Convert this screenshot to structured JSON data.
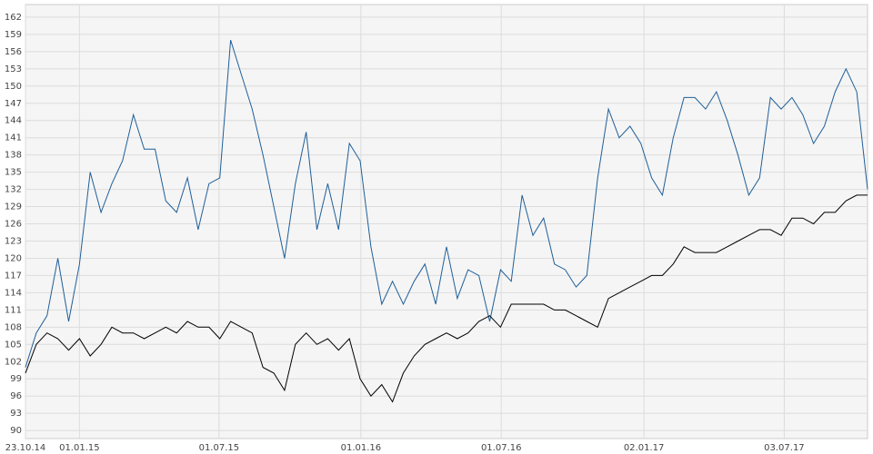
{
  "chart_data": {
    "type": "line",
    "x": [
      "23.10.14",
      "06.11.14",
      "20.11.14",
      "04.12.14",
      "18.12.14",
      "01.01.15",
      "15.01.15",
      "29.01.15",
      "12.02.15",
      "26.02.15",
      "12.03.15",
      "26.03.15",
      "09.04.15",
      "23.04.15",
      "07.05.15",
      "21.05.15",
      "04.06.15",
      "18.06.15",
      "02.07.15",
      "16.07.15",
      "30.07.15",
      "13.08.15",
      "27.08.15",
      "10.09.15",
      "24.09.15",
      "08.10.15",
      "22.10.15",
      "05.11.15",
      "19.11.15",
      "03.12.15",
      "17.12.15",
      "31.12.15",
      "14.01.16",
      "28.01.16",
      "11.02.16",
      "25.02.16",
      "10.03.16",
      "24.03.16",
      "07.04.16",
      "21.04.16",
      "05.05.16",
      "19.05.16",
      "02.06.16",
      "16.06.16",
      "30.06.16",
      "14.07.16",
      "28.07.16",
      "11.08.16",
      "25.08.16",
      "08.09.16",
      "22.09.16",
      "06.10.16",
      "20.10.16",
      "03.11.16",
      "17.11.16",
      "01.12.16",
      "15.12.16",
      "29.12.16",
      "12.01.17",
      "26.01.17",
      "09.02.17",
      "23.02.17",
      "09.03.17",
      "23.03.17",
      "06.04.17",
      "20.04.17",
      "04.05.17",
      "18.05.17",
      "01.06.17",
      "15.06.17",
      "29.06.17",
      "13.07.17",
      "27.07.17",
      "10.08.17",
      "24.08.17",
      "07.09.17",
      "21.09.17",
      "05.10.17",
      "19.10.17"
    ],
    "series": [
      {
        "color": "#1f5f99",
        "values": [
          101,
          107,
          110,
          120,
          109,
          119,
          135,
          128,
          133,
          137,
          145,
          139,
          139,
          130,
          128,
          134,
          125,
          133,
          134,
          158,
          152,
          146,
          138,
          129,
          120,
          133,
          142,
          125,
          133,
          125,
          140,
          137,
          122,
          112,
          116,
          112,
          116,
          119,
          112,
          122,
          113,
          118,
          117,
          109,
          118,
          116,
          131,
          124,
          127,
          119,
          118,
          115,
          117,
          134,
          146,
          141,
          143,
          140,
          134,
          131,
          141,
          148,
          148,
          146,
          149,
          144,
          138,
          131,
          134,
          148,
          146,
          148,
          145,
          140,
          143,
          149,
          153,
          149,
          132
        ]
      },
      {
        "color": "#000000",
        "values": [
          100,
          105,
          107,
          106,
          104,
          106,
          103,
          105,
          108,
          107,
          107,
          106,
          107,
          108,
          107,
          109,
          108,
          108,
          106,
          109,
          108,
          107,
          101,
          100,
          97,
          105,
          107,
          105,
          106,
          104,
          106,
          99,
          96,
          98,
          95,
          100,
          103,
          105,
          106,
          107,
          106,
          107,
          109,
          110,
          108,
          112,
          112,
          112,
          112,
          111,
          111,
          110,
          109,
          108,
          113,
          114,
          115,
          116,
          117,
          117,
          119,
          122,
          121,
          121,
          121,
          122,
          123,
          124,
          125,
          125,
          124,
          127,
          127,
          126,
          128,
          128,
          130,
          131,
          131
        ]
      }
    ],
    "xlim": [
      "23.10.14",
      "19.10.17"
    ],
    "xticks": [
      "23.10.14",
      "01.01.15",
      "01.07.15",
      "01.01.16",
      "01.07.16",
      "02.01.17",
      "03.07.17"
    ],
    "ylim": [
      88.6,
      164.2
    ],
    "yticks": [
      90,
      93,
      96,
      99,
      102,
      105,
      108,
      111,
      114,
      117,
      120,
      123,
      126,
      129,
      132,
      135,
      138,
      141,
      144,
      147,
      150,
      153,
      156,
      159,
      162
    ],
    "grid": true
  }
}
